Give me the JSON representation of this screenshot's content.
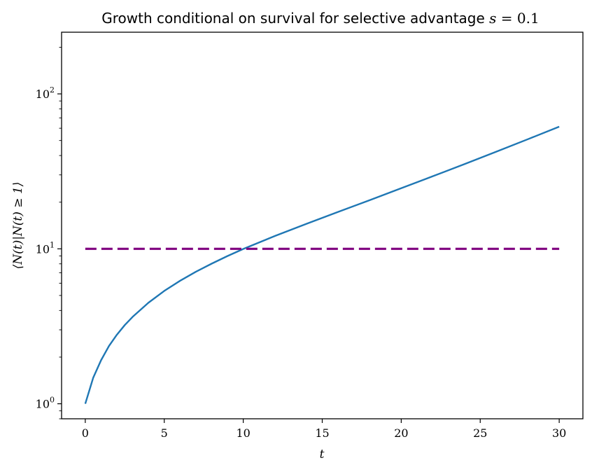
{
  "chart_data": {
    "type": "line",
    "title": {
      "prefix": "Growth conditional on survival for selective advantage ",
      "math_var": "s",
      "math_eq": " = ",
      "math_val": "0.1"
    },
    "xlabel": "t",
    "ylabel": "⟨N(t)|N(t) ≥ 1⟩",
    "xlim": [
      -1.5,
      31.5
    ],
    "ylim": [
      0.8,
      250
    ],
    "yscale": "log",
    "grid": false,
    "legend": "none",
    "x_ticks": [
      0,
      5,
      10,
      15,
      20,
      25,
      30
    ],
    "x_tick_labels": [
      "0",
      "5",
      "10",
      "15",
      "20",
      "25",
      "30"
    ],
    "y_ticks": [
      {
        "value": 1,
        "base": "10",
        "exp": "0"
      },
      {
        "value": 10,
        "base": "10",
        "exp": "1"
      },
      {
        "value": 100,
        "base": "10",
        "exp": "2"
      }
    ],
    "series": [
      {
        "style": "solid",
        "color": "#1f77b4",
        "x": [
          0,
          0.5,
          1,
          1.5,
          2,
          2.5,
          3,
          4,
          5,
          6,
          7,
          8,
          9,
          10,
          12,
          14,
          16,
          18,
          20,
          22,
          24,
          26,
          28,
          30
        ],
        "y": [
          1.0,
          1.47,
          1.91,
          2.36,
          2.79,
          3.22,
          3.64,
          4.49,
          5.35,
          6.22,
          7.11,
          8.02,
          8.98,
          9.98,
          12.1,
          14.5,
          17.3,
          20.6,
          24.6,
          29.4,
          35.2,
          42.3,
          50.9,
          61.4
        ]
      },
      {
        "style": "dashed",
        "color": "#800080",
        "x": [
          0,
          30
        ],
        "y": [
          10,
          10
        ]
      }
    ]
  }
}
